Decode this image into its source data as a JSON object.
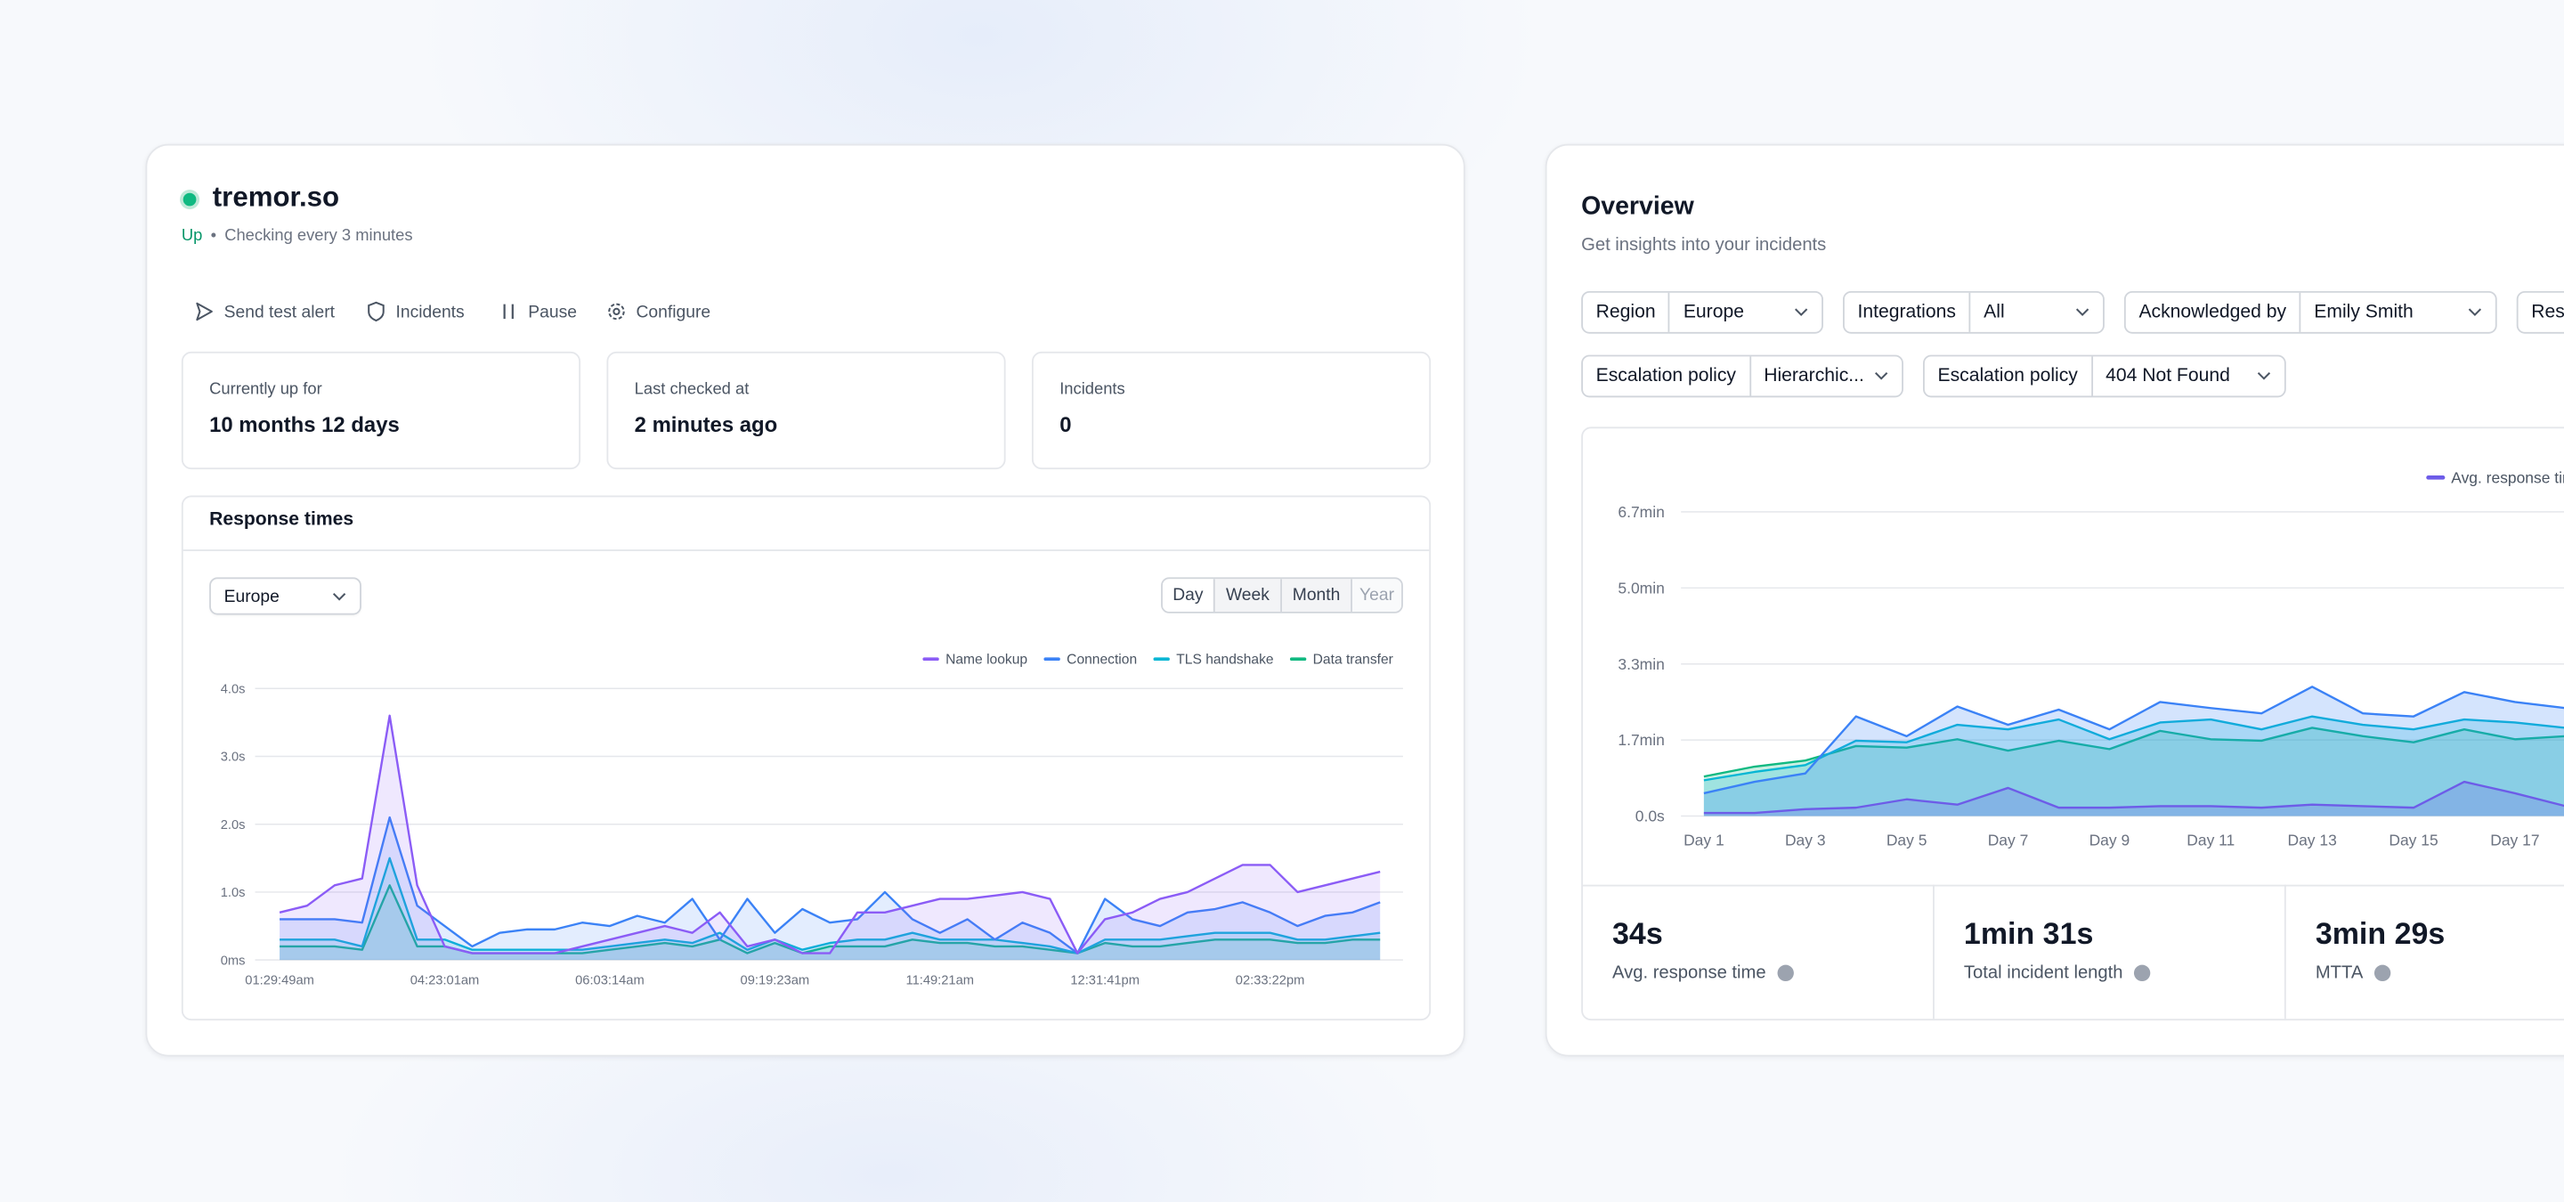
{
  "monitor": {
    "domain": "tremor.so",
    "status": "Up",
    "separator": "•",
    "check_interval": "Checking every 3 minutes",
    "actions": [
      "Send test alert",
      "Incidents",
      "Pause",
      "Configure"
    ],
    "stats": [
      {
        "label": "Currently up for",
        "value": "10 months 12 days"
      },
      {
        "label": "Last checked at",
        "value": "2 minutes ago"
      },
      {
        "label": "Incidents",
        "value": "0"
      }
    ],
    "response_times": {
      "title": "Response times",
      "region": "Europe",
      "periods": [
        "Day",
        "Week",
        "Month",
        "Year"
      ],
      "chart_data": {
        "type": "area",
        "grid": true,
        "categories": [
          "01:29:49am",
          null,
          null,
          null,
          null,
          null,
          "04:23:01am",
          null,
          null,
          null,
          null,
          null,
          "06:03:14am",
          null,
          null,
          null,
          null,
          null,
          "09:19:23am",
          null,
          null,
          null,
          null,
          null,
          "11:49:21am",
          null,
          null,
          null,
          null,
          null,
          "12:31:41pm",
          null,
          null,
          null,
          null,
          null,
          "02:33:22pm",
          null,
          null,
          null,
          null
        ],
        "ylim": [
          0,
          4
        ],
        "yticks": [
          {
            "value": 0,
            "label": "0ms"
          },
          {
            "value": 1,
            "label": "1.0s"
          },
          {
            "value": 2,
            "label": "2.0s"
          },
          {
            "value": 3,
            "label": "3.0s"
          },
          {
            "value": 4,
            "label": "4.0s"
          }
        ],
        "series": [
          {
            "name": "Name lookup",
            "color": "#8b5cf6",
            "values": [
              0.7,
              0.8,
              1.1,
              1.2,
              3.6,
              1.1,
              0.2,
              0.1,
              0.1,
              0.1,
              0.1,
              0.2,
              0.3,
              0.4,
              0.5,
              0.4,
              0.7,
              0.2,
              0.3,
              0.1,
              0.1,
              0.7,
              0.7,
              0.8,
              0.9,
              0.9,
              0.95,
              1.0,
              0.9,
              0.1,
              0.6,
              0.7,
              0.9,
              1.0,
              1.2,
              1.4,
              1.4,
              1.0,
              1.1,
              1.2,
              1.3
            ]
          },
          {
            "name": "Connection",
            "color": "#3b82f6",
            "values": [
              0.6,
              0.6,
              0.6,
              0.55,
              2.1,
              0.8,
              0.5,
              0.2,
              0.4,
              0.45,
              0.45,
              0.55,
              0.5,
              0.65,
              0.55,
              0.9,
              0.3,
              0.9,
              0.4,
              0.75,
              0.55,
              0.6,
              1.0,
              0.6,
              0.4,
              0.6,
              0.3,
              0.55,
              0.4,
              0.1,
              0.9,
              0.6,
              0.5,
              0.7,
              0.75,
              0.85,
              0.7,
              0.5,
              0.65,
              0.7,
              0.85
            ]
          },
          {
            "name": "TLS handshake",
            "color": "#06b6d4",
            "values": [
              0.3,
              0.3,
              0.3,
              0.2,
              1.5,
              0.3,
              0.3,
              0.15,
              0.15,
              0.15,
              0.15,
              0.15,
              0.2,
              0.25,
              0.3,
              0.25,
              0.4,
              0.15,
              0.3,
              0.15,
              0.25,
              0.3,
              0.3,
              0.4,
              0.3,
              0.3,
              0.3,
              0.25,
              0.2,
              0.1,
              0.3,
              0.3,
              0.3,
              0.35,
              0.4,
              0.4,
              0.4,
              0.3,
              0.3,
              0.35,
              0.4
            ]
          },
          {
            "name": "Data transfer",
            "color": "#10b981",
            "values": [
              0.2,
              0.2,
              0.2,
              0.15,
              1.1,
              0.2,
              0.2,
              0.1,
              0.1,
              0.1,
              0.1,
              0.1,
              0.15,
              0.2,
              0.25,
              0.2,
              0.3,
              0.1,
              0.25,
              0.1,
              0.2,
              0.2,
              0.2,
              0.3,
              0.25,
              0.25,
              0.2,
              0.2,
              0.15,
              0.1,
              0.25,
              0.2,
              0.2,
              0.25,
              0.3,
              0.3,
              0.3,
              0.25,
              0.25,
              0.3,
              0.3
            ]
          }
        ]
      }
    }
  },
  "overview": {
    "title": "Overview",
    "subtitle": "Get insights into your incidents",
    "filters": [
      {
        "label": "Region",
        "value": "Europe"
      },
      {
        "label": "Integrations",
        "value": "All"
      },
      {
        "label": "Acknowledged by",
        "value": "Emily Smith"
      },
      {
        "label": "Resolved by"
      },
      {
        "label": "Escalation policy",
        "value": "Hierarchic..."
      },
      {
        "label": "Escalation policy",
        "value": "404 Not Found"
      }
    ],
    "chart_data": {
      "type": "area",
      "grid": true,
      "categories": [
        "Day 1",
        null,
        "Day 3",
        null,
        "Day 5",
        null,
        "Day 7",
        null,
        "Day 9",
        null,
        "Day 11",
        null,
        "Day 13",
        null,
        "Day 15",
        null,
        "Day 17",
        null
      ],
      "ylim": [
        0,
        400
      ],
      "yticks": [
        {
          "value": 0,
          "label": "0.0s"
        },
        {
          "value": 100,
          "label": "1.7min"
        },
        {
          "value": 200,
          "label": "3.3min"
        },
        {
          "value": 300,
          "label": "5.0min"
        },
        {
          "value": 400,
          "label": "6.7min"
        }
      ],
      "series": [
        {
          "name": "Avg. response time",
          "color": "#6d5ce8",
          "values": [
            4,
            4,
            9,
            11,
            22,
            15,
            37,
            11,
            11,
            13,
            13,
            11,
            15,
            13,
            11,
            45,
            30,
            13
          ]
        },
        {
          "color": "#3b82f6",
          "values": [
            30,
            45,
            56,
            131,
            105,
            144,
            120,
            140,
            114,
            150,
            142,
            135,
            170,
            135,
            131,
            163,
            150,
            142
          ]
        },
        {
          "color": "#06b6d4",
          "values": [
            47,
            58,
            67,
            99,
            97,
            120,
            114,
            127,
            101,
            123,
            127,
            114,
            131,
            120,
            114,
            127,
            123,
            116
          ]
        },
        {
          "color": "#10b981",
          "values": [
            52,
            65,
            73,
            92,
            90,
            101,
            86,
            99,
            88,
            112,
            101,
            99,
            116,
            105,
            97,
            114,
            101,
            105
          ]
        }
      ]
    },
    "kpis": [
      {
        "value": "34s",
        "label": "Avg. response time"
      },
      {
        "value": "1min 31s",
        "label": "Total incident length"
      },
      {
        "value": "3min 29s",
        "label": "MTTA"
      }
    ]
  }
}
